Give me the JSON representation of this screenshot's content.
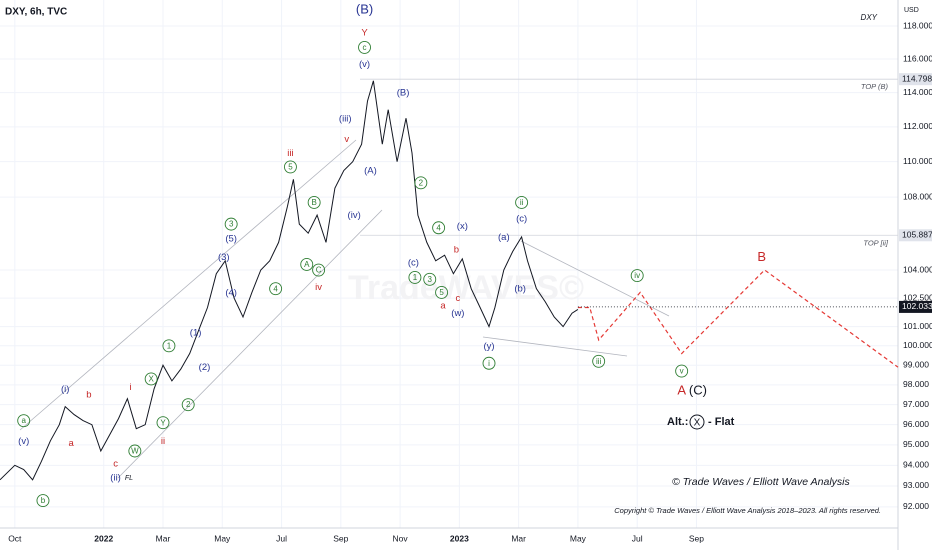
{
  "chart_data": {
    "type": "line",
    "title": "DXY, 6h, TVC",
    "symbol": "DXY",
    "unit": "USD",
    "watermark": "TradeWAVES©",
    "log_scale": true,
    "grid": true,
    "xlim": [
      -0.5,
      29.8
    ],
    "ylim": [
      91,
      119.6
    ],
    "xticks": [
      {
        "value": 0,
        "label": "Oct"
      },
      {
        "value": 3,
        "label": "2022"
      },
      {
        "value": 5,
        "label": "Mar"
      },
      {
        "value": 7,
        "label": "May"
      },
      {
        "value": 9,
        "label": "Jul"
      },
      {
        "value": 11,
        "label": "Sep"
      },
      {
        "value": 13,
        "label": "Nov"
      },
      {
        "value": 15,
        "label": "2023"
      },
      {
        "value": 17,
        "label": "Mar"
      },
      {
        "value": 19,
        "label": "May"
      },
      {
        "value": 21,
        "label": "Jul"
      },
      {
        "value": 23,
        "label": "Sep"
      }
    ],
    "yticks": [
      {
        "value": 118,
        "label": "118.000"
      },
      {
        "value": 116,
        "label": "116.000"
      },
      {
        "value": 114,
        "label": "114.000"
      },
      {
        "value": 112,
        "label": "112.000"
      },
      {
        "value": 110,
        "label": "110.000"
      },
      {
        "value": 108,
        "label": "108.000"
      },
      {
        "value": 104,
        "label": "104.000"
      },
      {
        "value": 102.5,
        "label": "102.500"
      },
      {
        "value": 101,
        "label": "101.000"
      },
      {
        "value": 100,
        "label": "100.000"
      },
      {
        "value": 99,
        "label": "99.000"
      },
      {
        "value": 98,
        "label": "98.000"
      },
      {
        "value": 97,
        "label": "97.000"
      },
      {
        "value": 96,
        "label": "96.000"
      },
      {
        "value": 95,
        "label": "95.000"
      },
      {
        "value": 94,
        "label": "94.000"
      },
      {
        "value": 93,
        "label": "93.000"
      },
      {
        "value": 92,
        "label": "92.000"
      }
    ],
    "series": [
      {
        "color": "#131722",
        "x": [
          -0.5,
          0,
          0.3,
          0.6,
          0.9,
          1.2,
          1.5,
          1.7,
          2.0,
          2.3,
          2.6,
          2.9,
          3.2,
          3.5,
          3.8,
          4.1,
          4.4,
          4.7,
          5.0,
          5.3,
          5.6,
          5.9,
          6.2,
          6.5,
          6.8,
          7.1,
          7.4,
          7.7,
          8.0,
          8.3,
          8.6,
          8.9,
          9.2,
          9.4,
          9.6,
          9.9,
          10.2,
          10.5,
          10.8,
          11.1,
          11.4,
          11.7,
          11.9,
          12.1,
          12.4,
          12.6,
          12.9,
          13.2,
          13.4,
          13.6,
          13.9,
          14.2,
          14.5,
          14.8,
          15.1,
          15.4,
          15.7,
          16.0,
          16.2,
          16.5,
          16.8,
          17.1,
          17.3,
          17.6,
          17.9,
          18.2,
          18.5,
          18.8,
          19.0
        ],
        "values": [
          93.3,
          94.0,
          93.8,
          93.3,
          94.2,
          95.2,
          96.0,
          96.9,
          96.5,
          96.2,
          96.0,
          94.7,
          95.5,
          96.3,
          97.3,
          95.8,
          96.0,
          97.8,
          99.0,
          98.2,
          98.8,
          99.6,
          100.8,
          102.0,
          103.8,
          104.5,
          102.5,
          101.5,
          102.8,
          104.0,
          104.5,
          105.5,
          107.5,
          109.0,
          106.5,
          106.0,
          107.0,
          105.5,
          108.5,
          109.5,
          110.0,
          111.0,
          113.5,
          114.7,
          111.0,
          113.0,
          110.0,
          112.5,
          110.5,
          107.0,
          105.5,
          104.5,
          104.8,
          103.8,
          104.6,
          103.0,
          102.0,
          101.0,
          102.0,
          104.0,
          105.0,
          105.8,
          104.5,
          103.0,
          102.3,
          101.5,
          101.0,
          101.7,
          101.9
        ]
      },
      {
        "color": "#e53935",
        "dashed": true,
        "x": [
          19.0,
          19.4,
          19.7,
          21.1,
          22.5,
          25.3,
          29.8
        ],
        "values": [
          102.0,
          102.0,
          100.3,
          102.8,
          99.6,
          104.0,
          98.9
        ]
      }
    ],
    "levels": [
      {
        "label": "TOP (B)",
        "value": 114.798
      },
      {
        "label": "TOP [ii]",
        "value": 105.887
      }
    ],
    "last_price": 102.033,
    "annotations": [
      {
        "text": "(B)",
        "color": "#283593",
        "x": 11.8,
        "y": 119.0,
        "circle": false
      },
      {
        "text": "Y",
        "color": "#c62828",
        "x": 11.8,
        "y": 117.6,
        "circle": false
      },
      {
        "text": "c",
        "color": "#2e7d32",
        "x": 11.8,
        "y": 116.7,
        "circle": true
      },
      {
        "text": "(v)",
        "color": "#283593",
        "x": 11.8,
        "y": 115.7,
        "circle": false
      },
      {
        "text": "(iii)",
        "color": "#283593",
        "x": 11.15,
        "y": 112.5,
        "circle": false
      },
      {
        "text": "v",
        "color": "#c62828",
        "x": 11.2,
        "y": 111.3,
        "circle": false
      },
      {
        "text": "iii",
        "color": "#c62828",
        "x": 9.3,
        "y": 110.5,
        "circle": false
      },
      {
        "text": "5",
        "color": "#2e7d32",
        "x": 9.3,
        "y": 109.7,
        "circle": true
      },
      {
        "text": "B",
        "color": "#2e7d32",
        "x": 10.1,
        "y": 107.7,
        "circle": true
      },
      {
        "text": "(iv)",
        "color": "#283593",
        "x": 11.45,
        "y": 107.0,
        "circle": false
      },
      {
        "text": "(A)",
        "color": "#283593",
        "x": 12.0,
        "y": 109.5,
        "circle": false
      },
      {
        "text": "(B)",
        "color": "#283593",
        "x": 13.1,
        "y": 114.0,
        "circle": false
      },
      {
        "text": "2",
        "color": "#2e7d32",
        "x": 13.7,
        "y": 108.8,
        "circle": true
      },
      {
        "text": "(x)",
        "color": "#283593",
        "x": 15.1,
        "y": 106.4,
        "circle": false
      },
      {
        "text": "4",
        "color": "#2e7d32",
        "x": 14.3,
        "y": 106.3,
        "circle": true
      },
      {
        "text": "b",
        "color": "#c62828",
        "x": 14.9,
        "y": 105.1,
        "circle": false
      },
      {
        "text": "(c)",
        "color": "#283593",
        "x": 13.45,
        "y": 104.4,
        "circle": false
      },
      {
        "text": "1",
        "color": "#2e7d32",
        "x": 13.5,
        "y": 103.6,
        "circle": true
      },
      {
        "text": "3",
        "color": "#2e7d32",
        "x": 14.0,
        "y": 103.5,
        "circle": true
      },
      {
        "text": "5",
        "color": "#2e7d32",
        "x": 14.4,
        "y": 102.8,
        "circle": true
      },
      {
        "text": "a",
        "color": "#c62828",
        "x": 14.45,
        "y": 102.1,
        "circle": false
      },
      {
        "text": "c",
        "color": "#c62828",
        "x": 14.95,
        "y": 102.5,
        "circle": false
      },
      {
        "text": "(w)",
        "color": "#283593",
        "x": 14.95,
        "y": 101.7,
        "circle": false
      },
      {
        "text": "(y)",
        "color": "#283593",
        "x": 16.0,
        "y": 100.0,
        "circle": false
      },
      {
        "text": "i",
        "color": "#2e7d32",
        "x": 16.0,
        "y": 99.1,
        "circle": true
      },
      {
        "text": "ii",
        "color": "#2e7d32",
        "x": 17.1,
        "y": 107.7,
        "circle": true
      },
      {
        "text": "(c)",
        "color": "#283593",
        "x": 17.1,
        "y": 106.8,
        "circle": false
      },
      {
        "text": "(a)",
        "color": "#283593",
        "x": 16.5,
        "y": 105.8,
        "circle": false
      },
      {
        "text": "(b)",
        "color": "#283593",
        "x": 17.05,
        "y": 103.0,
        "circle": false
      },
      {
        "text": "iii",
        "color": "#2e7d32",
        "x": 19.7,
        "y": 99.2,
        "circle": true
      },
      {
        "text": "iv",
        "color": "#2e7d32",
        "x": 21.0,
        "y": 103.7,
        "circle": true
      },
      {
        "text": "v",
        "color": "#2e7d32",
        "x": 22.5,
        "y": 98.7,
        "circle": true
      },
      {
        "text": "A",
        "color": "#c62828",
        "x": 22.5,
        "y": 97.7,
        "circle": false
      },
      {
        "text": "(C)",
        "color": "#131722",
        "x": 23.05,
        "y": 97.7,
        "circle": false
      },
      {
        "text": "B",
        "color": "#c62828",
        "x": 25.2,
        "y": 104.7,
        "circle": false
      },
      {
        "text": "a",
        "color": "#2e7d32",
        "x": 0.3,
        "y": 96.2,
        "circle": true
      },
      {
        "text": "(v)",
        "color": "#283593",
        "x": 0.3,
        "y": 95.2,
        "circle": false
      },
      {
        "text": "b",
        "color": "#2e7d32",
        "x": 0.95,
        "y": 92.3,
        "circle": true
      },
      {
        "text": "(i)",
        "color": "#283593",
        "x": 1.7,
        "y": 97.8,
        "circle": false
      },
      {
        "text": "b",
        "color": "#c62828",
        "x": 2.5,
        "y": 97.5,
        "circle": false
      },
      {
        "text": "a",
        "color": "#c62828",
        "x": 1.9,
        "y": 95.1,
        "circle": false
      },
      {
        "text": "c",
        "color": "#c62828",
        "x": 3.4,
        "y": 94.1,
        "circle": false
      },
      {
        "text": "(ii)",
        "color": "#283593",
        "x": 3.4,
        "y": 93.4,
        "circle": false
      },
      {
        "text": "FL",
        "color": "#131722",
        "x": 3.85,
        "y": 93.4,
        "circle": false
      },
      {
        "text": "i",
        "color": "#c62828",
        "x": 3.9,
        "y": 97.9,
        "circle": false
      },
      {
        "text": "ii",
        "color": "#c62828",
        "x": 5.0,
        "y": 95.2,
        "circle": false
      },
      {
        "text": "W",
        "color": "#2e7d32",
        "x": 4.05,
        "y": 94.7,
        "circle": true
      },
      {
        "text": "X",
        "color": "#2e7d32",
        "x": 4.6,
        "y": 98.3,
        "circle": true
      },
      {
        "text": "Y",
        "color": "#2e7d32",
        "x": 5.0,
        "y": 96.1,
        "circle": true
      },
      {
        "text": "1",
        "color": "#2e7d32",
        "x": 5.2,
        "y": 100.0,
        "circle": true
      },
      {
        "text": "2",
        "color": "#2e7d32",
        "x": 5.85,
        "y": 97.0,
        "circle": true
      },
      {
        "text": "(1)",
        "color": "#283593",
        "x": 6.1,
        "y": 100.7,
        "circle": false
      },
      {
        "text": "(2)",
        "color": "#283593",
        "x": 6.4,
        "y": 98.9,
        "circle": false
      },
      {
        "text": "(3)",
        "color": "#283593",
        "x": 7.05,
        "y": 104.7,
        "circle": false
      },
      {
        "text": "(4)",
        "color": "#283593",
        "x": 7.3,
        "y": 102.8,
        "circle": false
      },
      {
        "text": "(5)",
        "color": "#283593",
        "x": 7.3,
        "y": 105.7,
        "circle": false
      },
      {
        "text": "3",
        "color": "#2e7d32",
        "x": 7.3,
        "y": 106.5,
        "circle": true
      },
      {
        "text": "4",
        "color": "#2e7d32",
        "x": 8.8,
        "y": 103.0,
        "circle": true
      },
      {
        "text": "A",
        "color": "#2e7d32",
        "x": 9.85,
        "y": 104.3,
        "circle": true
      },
      {
        "text": "C",
        "color": "#2e7d32",
        "x": 10.25,
        "y": 104.0,
        "circle": true
      },
      {
        "text": "iv",
        "color": "#c62828",
        "x": 10.25,
        "y": 103.1,
        "circle": false
      }
    ],
    "alternate": {
      "prefix": "Alt.:",
      "wave": "X",
      "suffix": "- Flat"
    },
    "brand": "© Trade Waves / Elliott Wave Analysis",
    "copyright": "Copyright © Trade Waves / Elliott Wave Analysis 2018–2023. All rights reserved."
  }
}
